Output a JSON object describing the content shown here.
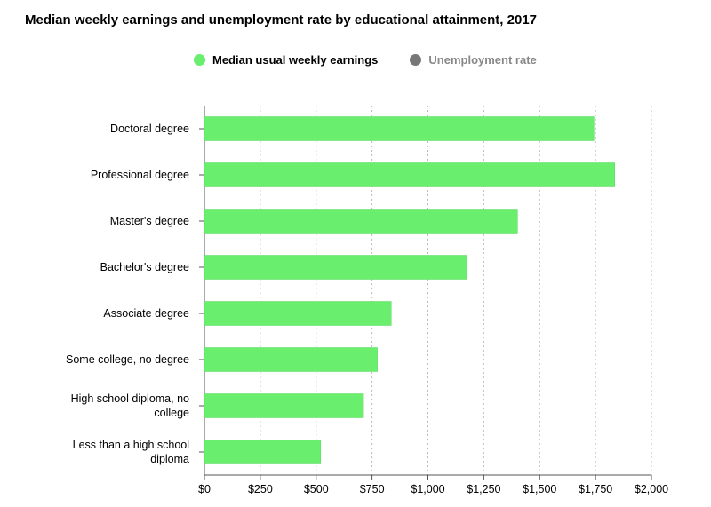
{
  "title": "Median weekly earnings and unemployment rate by educational attainment, 2017",
  "legend": [
    {
      "label": "Median usual weekly earnings",
      "color": "#6aee6e",
      "active": true
    },
    {
      "label": "Unemployment rate",
      "color": "#777777",
      "active": false
    }
  ],
  "colors": {
    "bar": "#6aee6e",
    "grid": "#bbbbbb",
    "axis": "#555555"
  },
  "chart_data": {
    "type": "bar",
    "orientation": "horizontal",
    "title": "Median weekly earnings and unemployment rate by educational attainment, 2017",
    "categories": [
      "Doctoral degree",
      "Professional degree",
      "Master's degree",
      "Bachelor's degree",
      "Associate degree",
      "Some college, no degree",
      "High school diploma, no college",
      "Less than a high school diploma"
    ],
    "series": [
      {
        "name": "Median usual weekly earnings",
        "values": [
          1743,
          1836,
          1401,
          1173,
          836,
          774,
          712,
          520
        ]
      }
    ],
    "xlim": [
      0,
      2000
    ],
    "xticks": [
      0,
      250,
      500,
      750,
      1000,
      1250,
      1500,
      1750,
      2000
    ],
    "xtick_labels": [
      "$0",
      "$250",
      "$500",
      "$750",
      "$1,000",
      "$1,250",
      "$1,500",
      "$1,750",
      "$2,000"
    ],
    "grid": "vertical dotted",
    "legend_position": "top"
  }
}
